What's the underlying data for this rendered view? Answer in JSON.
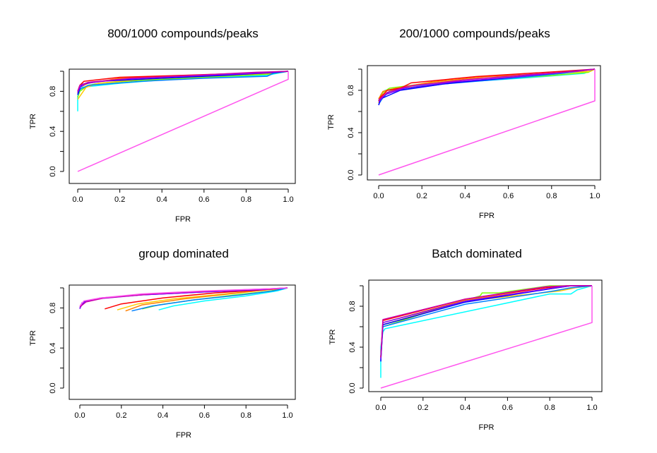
{
  "chart_data": [
    {
      "type": "line",
      "title": "800/1000 compounds/peaks",
      "xlabel": "FPR",
      "ylabel": "TPR",
      "xlim": [
        0,
        1
      ],
      "ylim": [
        0,
        1
      ],
      "xticks": [
        "0.0",
        "0.2",
        "0.4",
        "0.6",
        "0.8",
        "1.0"
      ],
      "yticks": [
        "0.0",
        "0.4",
        "0.8"
      ],
      "series": [
        {
          "color": "#00FFFF",
          "x": [
            0,
            0,
            0.01,
            0.02,
            0.2,
            0.5,
            0.9,
            1.0
          ],
          "y": [
            0.6,
            0.75,
            0.8,
            0.84,
            0.88,
            0.93,
            0.96,
            1.0
          ]
        },
        {
          "color": "#80FF00",
          "x": [
            0,
            0.01,
            0.05,
            0.1,
            0.3,
            0.6,
            0.9,
            1.0
          ],
          "y": [
            0.74,
            0.8,
            0.86,
            0.88,
            0.91,
            0.94,
            0.97,
            1.0
          ]
        },
        {
          "color": "#FFCC00",
          "x": [
            0,
            0.02,
            0.04,
            0.1,
            0.3,
            0.6,
            0.9,
            1.0
          ],
          "y": [
            0.72,
            0.78,
            0.84,
            0.88,
            0.92,
            0.95,
            0.98,
            1.0
          ]
        },
        {
          "color": "#FF8000",
          "x": [
            0,
            0.01,
            0.05,
            0.2,
            0.4,
            0.7,
            0.9,
            1.0
          ],
          "y": [
            0.78,
            0.84,
            0.88,
            0.93,
            0.95,
            0.96,
            0.98,
            1.0
          ]
        },
        {
          "color": "#FF0000",
          "x": [
            0,
            0.01,
            0.03,
            0.2,
            0.5,
            0.8,
            1.0
          ],
          "y": [
            0.8,
            0.86,
            0.9,
            0.94,
            0.96,
            0.98,
            1.0
          ]
        },
        {
          "color": "#0080FF",
          "x": [
            0,
            0.01,
            0.05,
            0.3,
            0.6,
            0.9,
            0.93,
            1.0
          ],
          "y": [
            0.76,
            0.82,
            0.86,
            0.9,
            0.93,
            0.95,
            0.98,
            1.0
          ]
        },
        {
          "color": "#0000FF",
          "x": [
            0,
            0.01,
            0.02,
            0.1,
            0.4,
            0.7,
            0.95,
            1.0
          ],
          "y": [
            0.77,
            0.83,
            0.87,
            0.9,
            0.93,
            0.96,
            0.99,
            1.0
          ]
        },
        {
          "color": "#8000FF",
          "x": [
            0,
            0.01,
            0.04,
            0.2,
            0.5,
            0.85,
            1.0
          ],
          "y": [
            0.79,
            0.84,
            0.88,
            0.92,
            0.95,
            0.98,
            1.0
          ]
        },
        {
          "color": "#CC00AA",
          "x": [
            0,
            0.01,
            0.05,
            0.25,
            0.55,
            0.85,
            1.0
          ],
          "y": [
            0.8,
            0.86,
            0.89,
            0.93,
            0.96,
            0.99,
            1.0
          ]
        },
        {
          "color": "#FF55EE",
          "x": [
            0,
            1.0,
            1.0
          ],
          "y": [
            0.0,
            0.92,
            1.0
          ]
        }
      ]
    },
    {
      "type": "line",
      "title": "200/1000 compounds/peaks",
      "xlabel": "FPR",
      "ylabel": "TPR",
      "xlim": [
        0,
        1
      ],
      "ylim": [
        0,
        1
      ],
      "xticks": [
        "0.0",
        "0.2",
        "0.4",
        "0.6",
        "0.8",
        "1.0"
      ],
      "yticks": [
        "0.0",
        "0.4",
        "0.8"
      ],
      "series": [
        {
          "color": "#00FFFF",
          "x": [
            0,
            0.01,
            0.03,
            0.15,
            0.4,
            0.7,
            0.95,
            1.0
          ],
          "y": [
            0.7,
            0.76,
            0.8,
            0.84,
            0.88,
            0.92,
            0.96,
            1.0
          ]
        },
        {
          "color": "#80FF00",
          "x": [
            0,
            0.02,
            0.05,
            0.2,
            0.5,
            0.8,
            0.97,
            1.0
          ],
          "y": [
            0.72,
            0.78,
            0.82,
            0.86,
            0.9,
            0.94,
            0.97,
            1.0
          ]
        },
        {
          "color": "#FFCC00",
          "x": [
            0,
            0.01,
            0.06,
            0.2,
            0.45,
            0.75,
            0.98,
            1.0
          ],
          "y": [
            0.68,
            0.75,
            0.8,
            0.86,
            0.91,
            0.95,
            0.98,
            1.0
          ]
        },
        {
          "color": "#FF8000",
          "x": [
            0,
            0.02,
            0.08,
            0.25,
            0.5,
            0.8,
            1.0
          ],
          "y": [
            0.72,
            0.79,
            0.82,
            0.88,
            0.93,
            0.96,
            1.0
          ]
        },
        {
          "color": "#FF0000",
          "x": [
            0,
            0.01,
            0.04,
            0.1,
            0.15,
            0.45,
            0.85,
            1.0
          ],
          "y": [
            0.7,
            0.74,
            0.8,
            0.82,
            0.87,
            0.93,
            0.98,
            1.0
          ]
        },
        {
          "color": "#0080FF",
          "x": [
            0,
            0.02,
            0.05,
            0.3,
            0.6,
            0.85,
            1.0
          ],
          "y": [
            0.67,
            0.73,
            0.79,
            0.86,
            0.91,
            0.96,
            1.0
          ]
        },
        {
          "color": "#0000FF",
          "x": [
            0,
            0.01,
            0.1,
            0.3,
            0.6,
            0.85,
            1.0
          ],
          "y": [
            0.66,
            0.72,
            0.8,
            0.86,
            0.92,
            0.97,
            1.0
          ]
        },
        {
          "color": "#8000FF",
          "x": [
            0,
            0.03,
            0.12,
            0.35,
            0.65,
            0.9,
            1.0
          ],
          "y": [
            0.69,
            0.76,
            0.82,
            0.88,
            0.93,
            0.98,
            1.0
          ]
        },
        {
          "color": "#CC00AA",
          "x": [
            0,
            0.04,
            0.14,
            0.4,
            0.7,
            0.92,
            1.0
          ],
          "y": [
            0.71,
            0.78,
            0.84,
            0.9,
            0.95,
            0.98,
            1.0
          ]
        },
        {
          "color": "#FF55EE",
          "x": [
            0,
            1.0,
            1.0
          ],
          "y": [
            0.0,
            0.7,
            1.0
          ]
        }
      ]
    },
    {
      "type": "line",
      "title": "group dominated",
      "xlabel": "FPR",
      "ylabel": "TPR",
      "xlim": [
        0,
        1
      ],
      "ylim": [
        0,
        1
      ],
      "xticks": [
        "0.0",
        "0.2",
        "0.4",
        "0.6",
        "0.8",
        "1.0"
      ],
      "yticks": [
        "0.0",
        "0.4",
        "0.8"
      ],
      "series": [
        {
          "color": "#00FFFF",
          "x": [
            0.38,
            0.45,
            0.6,
            0.8,
            0.95,
            1.0
          ],
          "y": [
            0.78,
            0.82,
            0.87,
            0.92,
            0.97,
            1.0
          ]
        },
        {
          "color": "#80FF00",
          "x": [
            0.3,
            0.38,
            0.55,
            0.75,
            0.92,
            1.0
          ],
          "y": [
            0.79,
            0.83,
            0.88,
            0.93,
            0.97,
            1.0
          ]
        },
        {
          "color": "#FFCC00",
          "x": [
            0.18,
            0.28,
            0.45,
            0.7,
            0.9,
            1.0
          ],
          "y": [
            0.78,
            0.84,
            0.89,
            0.94,
            0.98,
            1.0
          ]
        },
        {
          "color": "#FF8000",
          "x": [
            0.22,
            0.3,
            0.5,
            0.72,
            0.9,
            1.0
          ],
          "y": [
            0.77,
            0.83,
            0.89,
            0.94,
            0.98,
            1.0
          ]
        },
        {
          "color": "#FF0000",
          "x": [
            0.12,
            0.2,
            0.4,
            0.65,
            0.88,
            1.0
          ],
          "y": [
            0.79,
            0.84,
            0.9,
            0.95,
            0.98,
            1.0
          ]
        },
        {
          "color": "#0080FF",
          "x": [
            0.25,
            0.35,
            0.55,
            0.78,
            0.93,
            1.0
          ],
          "y": [
            0.77,
            0.82,
            0.88,
            0.93,
            0.97,
            1.0
          ]
        },
        {
          "color": "#0000FF",
          "x": [
            0,
            0.02,
            0.1,
            0.3,
            0.6,
            0.85,
            1.0
          ],
          "y": [
            0.8,
            0.86,
            0.9,
            0.93,
            0.96,
            0.98,
            1.0
          ]
        },
        {
          "color": "#8000FF",
          "x": [
            0,
            0.01,
            0.08,
            0.3,
            0.6,
            0.85,
            1.0
          ],
          "y": [
            0.79,
            0.85,
            0.89,
            0.93,
            0.96,
            0.98,
            1.0
          ]
        },
        {
          "color": "#CC00AA",
          "x": [
            0,
            0.03,
            0.12,
            0.35,
            0.65,
            0.9,
            1.0
          ],
          "y": [
            0.81,
            0.86,
            0.9,
            0.94,
            0.97,
            0.99,
            1.0
          ]
        },
        {
          "color": "#FF55EE",
          "x": [
            0,
            0.02,
            0.1,
            0.3,
            0.6,
            0.9,
            1.0
          ],
          "y": [
            0.82,
            0.87,
            0.9,
            0.94,
            0.97,
            0.99,
            1.0
          ]
        }
      ]
    },
    {
      "type": "line",
      "title": "Batch dominated",
      "xlabel": "FPR",
      "ylabel": "TPR",
      "xlim": [
        0,
        1
      ],
      "ylim": [
        0,
        1
      ],
      "xticks": [
        "0.0",
        "0.2",
        "0.4",
        "0.6",
        "0.8",
        "1.0"
      ],
      "yticks": [
        "0.0",
        "0.4",
        "0.8"
      ],
      "series": [
        {
          "color": "#00FFFF",
          "x": [
            0,
            0,
            0.01,
            0.02,
            0.8,
            0.9,
            0.93,
            1.0
          ],
          "y": [
            0.1,
            0.4,
            0.55,
            0.58,
            0.92,
            0.92,
            0.96,
            1.0
          ]
        },
        {
          "color": "#80FF00",
          "x": [
            0,
            0.01,
            0.4,
            0.47,
            0.48,
            0.56,
            0.8,
            1.0
          ],
          "y": [
            0.3,
            0.6,
            0.86,
            0.9,
            0.93,
            0.93,
            1.0,
            1.0
          ]
        },
        {
          "color": "#FFCC00",
          "x": [
            0,
            0.01,
            0.4,
            0.85,
            0.92,
            1.0
          ],
          "y": [
            0.3,
            0.62,
            0.85,
            0.95,
            0.98,
            1.0
          ]
        },
        {
          "color": "#FF8000",
          "x": [
            0,
            0.01,
            0.4,
            0.8,
            0.9,
            1.0
          ],
          "y": [
            0.3,
            0.64,
            0.86,
            0.97,
            1.0,
            1.0
          ]
        },
        {
          "color": "#FF0000",
          "x": [
            0,
            0.01,
            0.4,
            0.78,
            0.88,
            1.0
          ],
          "y": [
            0.3,
            0.66,
            0.87,
            0.98,
            1.0,
            1.0
          ]
        },
        {
          "color": "#0080FF",
          "x": [
            0,
            0.01,
            0.4,
            0.82,
            0.9,
            1.0
          ],
          "y": [
            0.28,
            0.6,
            0.82,
            0.95,
            0.98,
            1.0
          ]
        },
        {
          "color": "#0000FF",
          "x": [
            0,
            0.01,
            0.4,
            0.8,
            0.9,
            1.0
          ],
          "y": [
            0.26,
            0.62,
            0.84,
            0.97,
            1.0,
            1.0
          ]
        },
        {
          "color": "#8000FF",
          "x": [
            0,
            0.01,
            0.4,
            0.82,
            0.9,
            1.0
          ],
          "y": [
            0.28,
            0.64,
            0.85,
            0.98,
            1.0,
            1.0
          ]
        },
        {
          "color": "#CC00AA",
          "x": [
            0,
            0.01,
            0.4,
            0.78,
            0.88,
            1.0
          ],
          "y": [
            0.3,
            0.67,
            0.87,
            0.99,
            1.0,
            1.0
          ]
        },
        {
          "color": "#FF55EE",
          "x": [
            0,
            1.0,
            1.0
          ],
          "y": [
            0.0,
            0.64,
            1.0
          ]
        }
      ]
    }
  ]
}
